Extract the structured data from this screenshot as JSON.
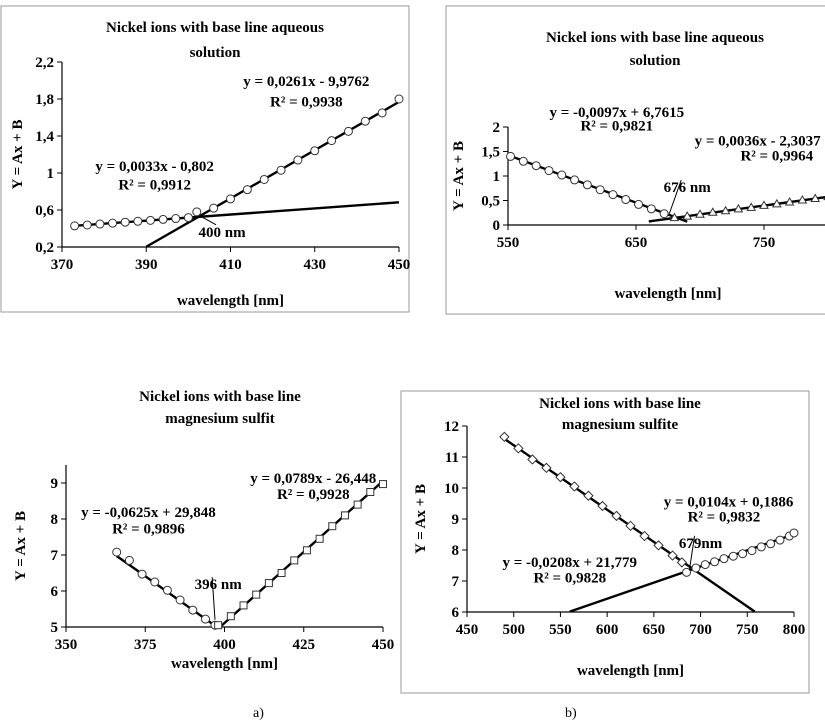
{
  "captions": {
    "a": "a)",
    "b": "b)"
  },
  "chart_data": [
    {
      "id": "tl",
      "type": "scatter",
      "title": [
        "Nickel ions with base line aqueous",
        "solution"
      ],
      "xlabel": "wavelength [nm]",
      "ylabel": "Y = Ax + B",
      "xlim": [
        370,
        450
      ],
      "ylim": [
        0.2,
        2.2
      ],
      "xticks": [
        370,
        390,
        410,
        430,
        450
      ],
      "yticks": [
        0.2,
        0.6,
        1,
        1.4,
        1.8,
        2.2
      ],
      "ytick_labels": [
        "0,2",
        "0,6",
        "1",
        "1,4",
        "1,8",
        "2,2"
      ],
      "grid": false,
      "frame": true,
      "series": [
        {
          "marker": "circle",
          "x": [
            373,
            376,
            379,
            382,
            385,
            388,
            391,
            394,
            397,
            400
          ],
          "y": [
            0.428,
            0.438,
            0.448,
            0.458,
            0.468,
            0.478,
            0.488,
            0.498,
            0.508,
            0.518
          ]
        },
        {
          "marker": "circle",
          "x": [
            402,
            406,
            410,
            414,
            418,
            422,
            426,
            430,
            434,
            438,
            442,
            446,
            450
          ],
          "y": [
            0.58,
            0.62,
            0.72,
            0.82,
            0.93,
            1.03,
            1.14,
            1.24,
            1.35,
            1.45,
            1.56,
            1.65,
            1.8
          ]
        }
      ],
      "fits": [
        {
          "slope": 0.0033,
          "intercept": -0.802,
          "xrange": [
            373,
            450
          ]
        },
        {
          "slope": 0.0261,
          "intercept": -9.9762,
          "xrange": [
            390,
            450
          ]
        }
      ],
      "annotations": [
        {
          "text": "y = 0,0261x - 9,9762",
          "x": 428,
          "y": 1.94
        },
        {
          "text": "R² = 0,9938",
          "x": 428,
          "y": 1.72
        },
        {
          "text": "y = 0,0033x - 0,802",
          "x": 392,
          "y": 1.02
        },
        {
          "text": "R² = 0,9912",
          "x": 392,
          "y": 0.82
        },
        {
          "text": "400 nm",
          "x": 408,
          "y": 0.31,
          "arrow_to": [
            403,
            0.53
          ]
        }
      ]
    },
    {
      "id": "tr",
      "type": "scatter",
      "title": [
        "Nickel ions with base line aqueous",
        "solution"
      ],
      "xlabel": "wavelength [nm]",
      "ylabel": "Y = Ax + B",
      "xlim": [
        550,
        800
      ],
      "ylim": [
        0,
        2
      ],
      "xticks": [
        550,
        650,
        750
      ],
      "yticks": [
        0,
        0.5,
        1,
        1.5,
        2
      ],
      "ytick_labels": [
        "0",
        "0,5",
        "1",
        "1,5",
        "2"
      ],
      "grid": false,
      "frame": true,
      "series": [
        {
          "marker": "circle",
          "x": [
            552,
            562,
            572,
            582,
            592,
            602,
            612,
            622,
            632,
            642,
            652,
            662,
            672
          ],
          "y": [
            1.4,
            1.3,
            1.21,
            1.11,
            1.02,
            0.92,
            0.82,
            0.72,
            0.62,
            0.52,
            0.42,
            0.33,
            0.23
          ]
        },
        {
          "marker": "triangle",
          "x": [
            680,
            690,
            700,
            710,
            720,
            730,
            740,
            750,
            760,
            770,
            780,
            790,
            800
          ],
          "y": [
            0.15,
            0.18,
            0.22,
            0.26,
            0.29,
            0.33,
            0.36,
            0.4,
            0.43,
            0.47,
            0.51,
            0.54,
            0.58
          ]
        }
      ],
      "fits": [
        {
          "slope": -0.0097,
          "intercept": 6.7615,
          "xrange": [
            550,
            690
          ]
        },
        {
          "slope": 0.0036,
          "intercept": -2.3037,
          "xrange": [
            660,
            800
          ]
        }
      ],
      "annotations": [
        {
          "text": "y = -0,0097x + 6,7615",
          "x": 635,
          "y": 2.2
        },
        {
          "text": "R² = 0,9821",
          "x": 635,
          "y": 1.93
        },
        {
          "text": "y = 0,0036x - 2,3037",
          "x": 745,
          "y": 1.62
        },
        {
          "text": "R² = 0,9964",
          "x": 760,
          "y": 1.32
        },
        {
          "text": "676 nm",
          "x": 690,
          "y": 0.67,
          "arrow_to": [
            676,
            0.23
          ]
        }
      ]
    },
    {
      "id": "bl",
      "type": "scatter",
      "title": [
        "Nickel ions with base line",
        "magnesium sulfit"
      ],
      "xlabel": "wavelength [nm]",
      "ylabel": "Y = Ax + B",
      "xlim": [
        350,
        450
      ],
      "ylim": [
        5,
        9.5
      ],
      "xticks": [
        350,
        375,
        400,
        425,
        450
      ],
      "yticks": [
        5,
        6,
        7,
        8,
        9
      ],
      "ytick_labels": [
        "5",
        "6",
        "7",
        "8",
        "9"
      ],
      "grid": false,
      "frame": false,
      "series": [
        {
          "marker": "circle",
          "x": [
            366,
            370,
            374,
            378,
            382,
            386,
            390,
            394,
            397
          ],
          "y": [
            7.08,
            6.85,
            6.47,
            6.25,
            6.02,
            5.75,
            5.47,
            5.22,
            5.05
          ]
        },
        {
          "marker": "square",
          "x": [
            398,
            402,
            406,
            410,
            414,
            418,
            422,
            426,
            430,
            434,
            438,
            442,
            446,
            450
          ],
          "y": [
            5.05,
            5.3,
            5.6,
            5.9,
            6.22,
            6.5,
            6.85,
            7.13,
            7.45,
            7.8,
            8.1,
            8.4,
            8.75,
            8.97
          ]
        }
      ],
      "fits": [
        {
          "slope": -0.0625,
          "intercept": 29.848,
          "xrange": [
            366,
            400
          ]
        },
        {
          "slope": 0.0789,
          "intercept": -26.448,
          "xrange": [
            398,
            450
          ]
        }
      ],
      "annotations": [
        {
          "text": "y = 0,0789x - 26,448",
          "x": 428,
          "y": 9.0
        },
        {
          "text": "R² = 0,9928",
          "x": 428,
          "y": 8.55
        },
        {
          "text": "y = -0,0625x + 29,848",
          "x": 376,
          "y": 8.05
        },
        {
          "text": "R² = 0,9896",
          "x": 376,
          "y": 7.6
        },
        {
          "text": "396 nm",
          "x": 398,
          "y": 6.05,
          "arrow_to": [
            397,
            5.2
          ]
        }
      ]
    },
    {
      "id": "br",
      "type": "scatter",
      "title": [
        "Nickel ions with base line",
        "magnesium sulfite"
      ],
      "xlabel": "wavelength [nm]",
      "ylabel": "Y = Ax + B",
      "xlim": [
        450,
        800
      ],
      "ylim": [
        6,
        12
      ],
      "xticks": [
        450,
        500,
        550,
        600,
        650,
        700,
        750,
        800
      ],
      "yticks": [
        6,
        7,
        8,
        9,
        10,
        11,
        12
      ],
      "ytick_labels": [
        "6",
        "7",
        "8",
        "9",
        "10",
        "11",
        "12"
      ],
      "grid": false,
      "frame": true,
      "series": [
        {
          "marker": "diamond",
          "x": [
            490,
            505,
            520,
            535,
            550,
            565,
            580,
            595,
            610,
            625,
            640,
            655,
            670,
            680
          ],
          "y": [
            11.65,
            11.28,
            10.92,
            10.65,
            10.35,
            10.05,
            9.75,
            9.42,
            9.1,
            8.78,
            8.45,
            8.15,
            7.82,
            7.6
          ]
        },
        {
          "marker": "circle",
          "x": [
            685,
            695,
            705,
            715,
            725,
            735,
            745,
            755,
            765,
            775,
            785,
            795,
            800
          ],
          "y": [
            7.28,
            7.42,
            7.53,
            7.62,
            7.72,
            7.8,
            7.88,
            7.98,
            8.1,
            8.2,
            8.32,
            8.45,
            8.55
          ]
        }
      ],
      "fits": [
        {
          "slope": -0.0208,
          "intercept": 21.779,
          "xrange": [
            490,
            758
          ]
        },
        {
          "slope": 0.0104,
          "intercept": 0.1886,
          "xrange": [
            560,
            800
          ]
        }
      ],
      "annotations": [
        {
          "text": "y = 0,0104x + 0,1886",
          "x": 730,
          "y": 9.4
        },
        {
          "text": "R² = 0,9832",
          "x": 725,
          "y": 8.92
        },
        {
          "text": "679nm",
          "x": 700,
          "y": 8.07,
          "arrow_to": [
            688,
            7.35
          ]
        },
        {
          "text": "y = -0,0208x + 21,779",
          "x": 560,
          "y": 7.45
        },
        {
          "text": "R² = 0,9828",
          "x": 560,
          "y": 6.95
        }
      ]
    }
  ]
}
